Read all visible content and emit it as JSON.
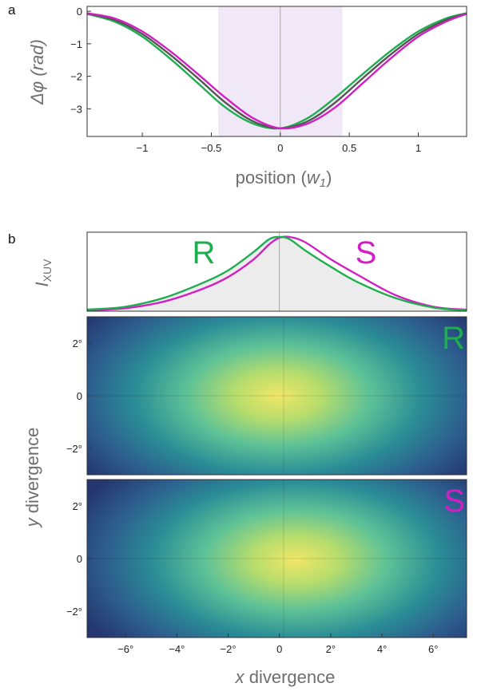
{
  "colors": {
    "R": "#1fae4f",
    "S": "#d11fc4",
    "mid": "#555555",
    "shade": "#f0e8f6",
    "fill": "#ececec"
  },
  "chart_data": [
    {
      "panel": "a",
      "type": "line",
      "xlabel_main": "position (",
      "xlabel_var": "w",
      "xlabel_sub": "1",
      "xlabel_end": ")",
      "ylabel": "Δφ (rad)",
      "xlim": [
        -1.4,
        1.35
      ],
      "ylim": [
        -3.85,
        0.15
      ],
      "xticks": [
        -1,
        -0.5,
        0,
        0.5,
        1
      ],
      "xticklabels": [
        "−1",
        "−0.5",
        "0",
        "0.5",
        "1"
      ],
      "yticks": [
        0,
        -1,
        -2,
        -3
      ],
      "yticklabels": [
        "0",
        "−1",
        "−2",
        "−3"
      ],
      "shaded_region": [
        -0.45,
        0.45
      ],
      "x": [
        -1.4,
        -1.2,
        -1.0,
        -0.8,
        -0.6,
        -0.4,
        -0.2,
        0.0,
        0.2,
        0.4,
        0.6,
        0.8,
        1.0,
        1.2,
        1.35
      ],
      "series": [
        {
          "color_key": "R",
          "values": [
            -0.08,
            -0.32,
            -0.78,
            -1.45,
            -2.2,
            -2.95,
            -3.45,
            -3.6,
            -3.28,
            -2.65,
            -1.92,
            -1.22,
            -0.62,
            -0.22,
            -0.06
          ]
        },
        {
          "color_key": "mid",
          "values": [
            -0.07,
            -0.27,
            -0.7,
            -1.33,
            -2.05,
            -2.8,
            -3.38,
            -3.6,
            -3.38,
            -2.8,
            -2.05,
            -1.33,
            -0.7,
            -0.27,
            -0.07
          ]
        },
        {
          "color_key": "S",
          "values": [
            -0.06,
            -0.22,
            -0.62,
            -1.22,
            -1.92,
            -2.65,
            -3.28,
            -3.6,
            -3.45,
            -2.95,
            -2.2,
            -1.45,
            -0.78,
            -0.32,
            -0.08
          ]
        }
      ]
    },
    {
      "panel": "b",
      "type": "line",
      "ylabel_main": "I",
      "ylabel_sub": "XUV",
      "xlim": [
        -7.5,
        7.3
      ],
      "x": [
        -7.5,
        -6,
        -4.5,
        -3,
        -2,
        -1,
        -0.4,
        0,
        0.4,
        1,
        2,
        3,
        4.5,
        6,
        7.3
      ],
      "series": [
        {
          "name": "R",
          "color_key": "R",
          "values": [
            0.02,
            0.06,
            0.18,
            0.38,
            0.55,
            0.8,
            0.97,
            1.0,
            0.97,
            0.82,
            0.6,
            0.4,
            0.18,
            0.05,
            0.01
          ]
        },
        {
          "name": "S",
          "color_key": "S",
          "values": [
            0.01,
            0.04,
            0.13,
            0.3,
            0.46,
            0.7,
            0.9,
            0.99,
            1.0,
            0.93,
            0.7,
            0.5,
            0.22,
            0.06,
            0.02
          ]
        }
      ]
    },
    {
      "type": "heatmap",
      "label": "R",
      "color_key": "R",
      "center": [
        -0.3,
        0
      ],
      "ylim": [
        -3,
        3
      ],
      "yticks": [
        2,
        0,
        -2
      ],
      "yticklabels": [
        "2°",
        "0",
        "−2°"
      ]
    },
    {
      "type": "heatmap",
      "label": "S",
      "color_key": "S",
      "center": [
        0.4,
        -0.1
      ],
      "ylim": [
        -3,
        3
      ],
      "yticks": [
        2,
        0,
        -2
      ],
      "yticklabels": [
        "2°",
        "0",
        "−2°"
      ],
      "xticks": [
        -6,
        -4,
        -2,
        0,
        2,
        4,
        6
      ],
      "xticklabels": [
        "−6°",
        "−4°",
        "−2°",
        "0",
        "2°",
        "4°",
        "6°"
      ]
    }
  ],
  "labels": {
    "x_div_var": "x",
    "x_div_text": " divergence",
    "y_div_var": "y",
    "y_div_text": " divergence"
  }
}
